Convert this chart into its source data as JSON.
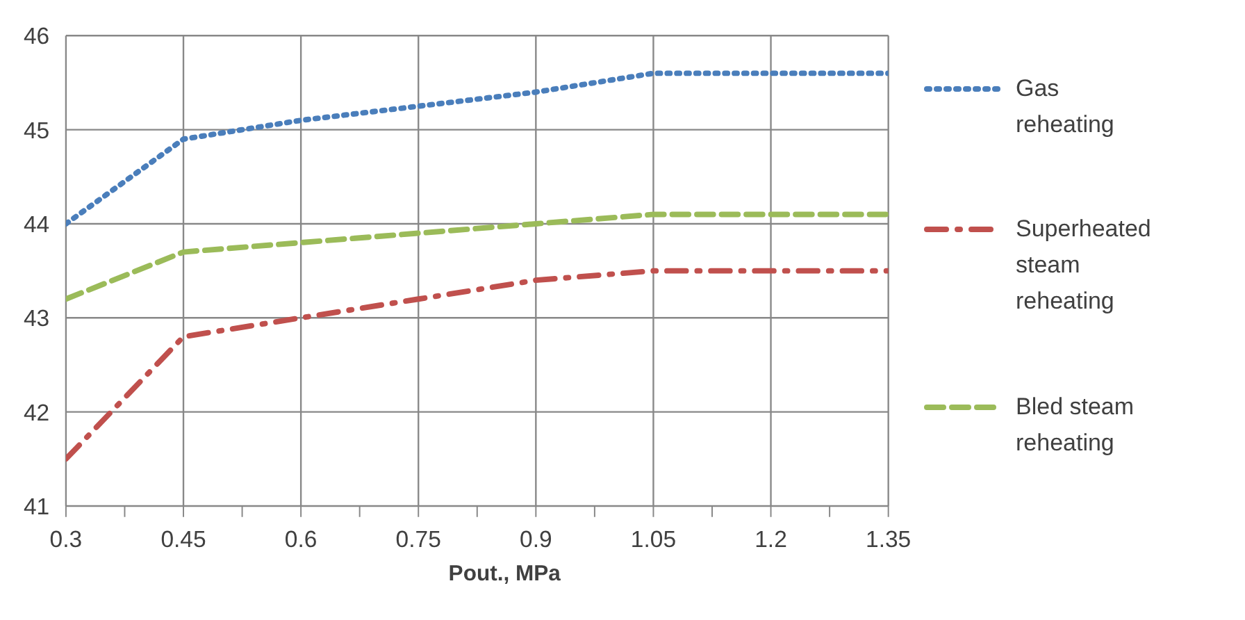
{
  "chart_data": {
    "type": "line",
    "xlabel": "Pout., MPa",
    "x": [
      0.3,
      0.45,
      0.6,
      0.75,
      0.9,
      1.05,
      1.2,
      1.35
    ],
    "series": [
      {
        "name": "Gas reheating",
        "color": "#4a7ebb",
        "line_style": "dotted",
        "values": [
          44.0,
          44.9,
          45.1,
          45.25,
          45.4,
          45.6,
          45.6,
          45.6
        ]
      },
      {
        "name": "Superheated steam reheating",
        "color": "#c0504d",
        "line_style": "dashdot",
        "values": [
          41.5,
          42.8,
          43.0,
          43.2,
          43.4,
          43.5,
          43.5,
          43.5
        ]
      },
      {
        "name": "Bled steam reheating",
        "color": "#9bbb59",
        "line_style": "dashed",
        "values": [
          43.2,
          43.7,
          43.8,
          43.9,
          44.0,
          44.1,
          44.1,
          44.1
        ]
      }
    ],
    "xlim": [
      0.3,
      1.35
    ],
    "xticks": [
      0.3,
      {
        "value": 0.375,
        "label": null
      },
      0.45,
      {
        "value": 0.525,
        "label": null
      },
      0.6,
      {
        "value": 0.675,
        "label": null
      },
      0.75,
      {
        "value": 0.825,
        "label": null
      },
      0.9,
      {
        "value": 0.975,
        "label": null
      },
      1.05,
      {
        "value": 1.125,
        "label": null
      },
      1.2,
      {
        "value": 1.275,
        "label": null
      },
      1.35
    ],
    "ylim": [
      41,
      46
    ],
    "yticks": [
      41,
      42,
      43,
      44,
      45,
      46
    ],
    "grid": true,
    "legend": "right",
    "marker": "none"
  }
}
